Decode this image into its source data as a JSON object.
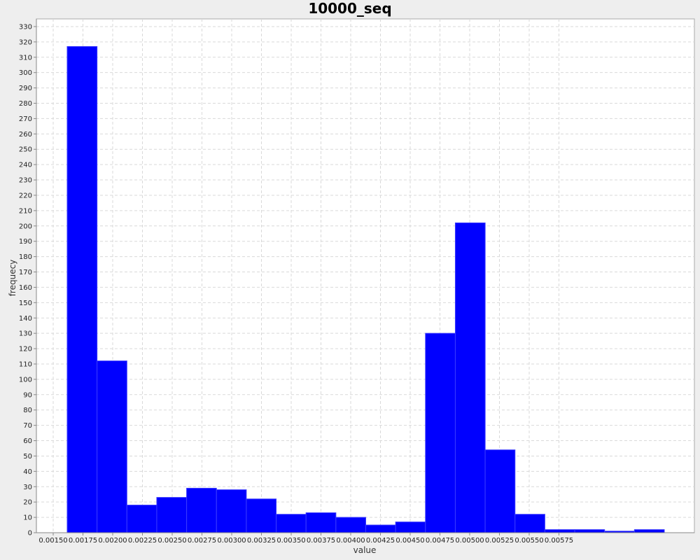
{
  "chart_data": {
    "type": "bar",
    "title": "10000_seq",
    "xlabel": "value",
    "ylabel": "frequecy",
    "xlim": [
      0.0014,
      0.00595
    ],
    "ylim": [
      0,
      335
    ],
    "grid": true,
    "bar_color": "#0000ff",
    "x_ticks": [
      "0.00150",
      "0.00175",
      "0.00200",
      "0.00225",
      "0.00250",
      "0.00275",
      "0.00300",
      "0.00325",
      "0.00350",
      "0.00375",
      "0.00400",
      "0.00425",
      "0.00450",
      "0.00475",
      "0.00500",
      "0.00525",
      "0.00550",
      "0.00575"
    ],
    "y_ticks": [
      "0",
      "10",
      "20",
      "30",
      "40",
      "50",
      "60",
      "70",
      "80",
      "90",
      "100",
      "110",
      "120",
      "130",
      "140",
      "150",
      "160",
      "170",
      "180",
      "190",
      "200",
      "210",
      "220",
      "230",
      "240",
      "250",
      "260",
      "270",
      "280",
      "290",
      "300",
      "310",
      "320",
      "330"
    ],
    "bins": [
      {
        "start": 0.0016,
        "end": 0.00185,
        "count": 317
      },
      {
        "start": 0.00185,
        "end": 0.0021,
        "count": 112
      },
      {
        "start": 0.0021,
        "end": 0.00235,
        "count": 18
      },
      {
        "start": 0.00235,
        "end": 0.0026,
        "count": 23
      },
      {
        "start": 0.0026,
        "end": 0.00285,
        "count": 29
      },
      {
        "start": 0.00285,
        "end": 0.0031,
        "count": 28
      },
      {
        "start": 0.0031,
        "end": 0.00335,
        "count": 22
      },
      {
        "start": 0.00335,
        "end": 0.0036,
        "count": 12
      },
      {
        "start": 0.0036,
        "end": 0.00385,
        "count": 13
      },
      {
        "start": 0.00385,
        "end": 0.0041,
        "count": 10
      },
      {
        "start": 0.0041,
        "end": 0.00435,
        "count": 5
      },
      {
        "start": 0.00435,
        "end": 0.0046,
        "count": 7
      },
      {
        "start": 0.0046,
        "end": 0.00485,
        "count": 130
      },
      {
        "start": 0.00485,
        "end": 0.0051,
        "count": 202
      },
      {
        "start": 0.0051,
        "end": 0.00535,
        "count": 54
      },
      {
        "start": 0.00535,
        "end": 0.0056,
        "count": 12
      },
      {
        "start": 0.0056,
        "end": 0.00585,
        "count": 2
      },
      {
        "start": 0.00585,
        "end": 0.0061,
        "count": 2
      },
      {
        "start": 0.0061,
        "end": 0.00635,
        "count": 1
      },
      {
        "start": 0.00635,
        "end": 0.0066,
        "count": 2
      }
    ]
  }
}
